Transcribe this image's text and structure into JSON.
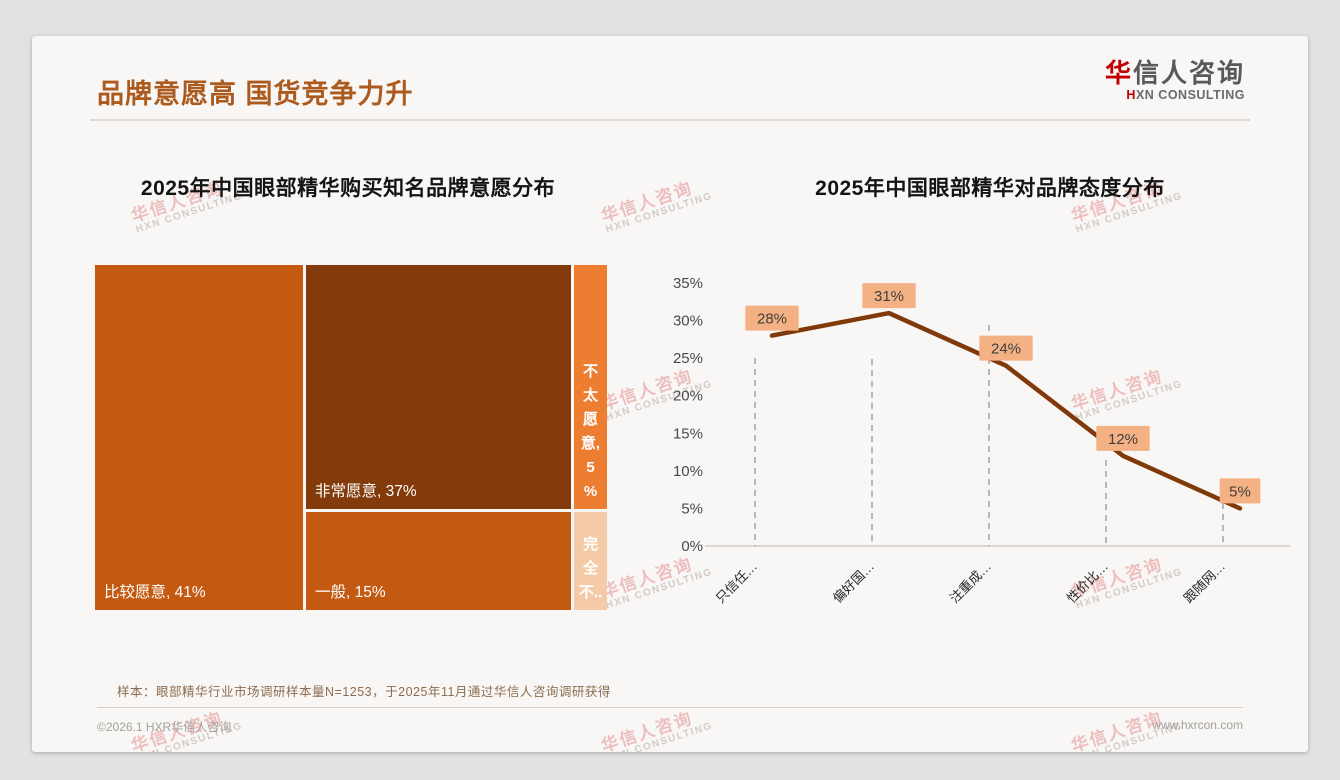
{
  "header": {
    "title": "品牌意愿高 国货竞争力升",
    "logo": {
      "cn_first": "华",
      "cn_rest": "信人咨询",
      "en_first": "H",
      "en_rest": "XN CONSULTING"
    }
  },
  "watermark": {
    "cn": "华信人咨询",
    "en": "HXN CONSULTING"
  },
  "chart_data": [
    {
      "type": "treemap",
      "title": "2025年中国眼部精华购买知名品牌意愿分布",
      "items": [
        {
          "label": "比较愿意",
          "value": 41,
          "display": "比较愿意, 41%",
          "color": "#C45A11",
          "orientation": "horizontal"
        },
        {
          "label": "非常愿意",
          "value": 37,
          "display": "非常愿意, 37%",
          "color": "#833B0B",
          "orientation": "horizontal"
        },
        {
          "label": "一般",
          "value": 15,
          "display": "一般, 15%",
          "color": "#C45A11",
          "orientation": "horizontal"
        },
        {
          "label": "不太愿意",
          "value": 5,
          "display": "不太愿意, 5%",
          "color": "#ED7D31",
          "orientation": "vertical"
        },
        {
          "label": "完全不愿意",
          "value": 2,
          "display": "完全不..",
          "color": "#F4CBA6",
          "orientation": "vertical"
        }
      ]
    },
    {
      "type": "line",
      "title": "2025年中国眼部精华对品牌态度分布",
      "categories": [
        "只信任…",
        "偏好国…",
        "注重成…",
        "性价比…",
        "跟随网…"
      ],
      "values": [
        28,
        31,
        24,
        12,
        5
      ],
      "point_labels": [
        "28%",
        "31%",
        "24%",
        "12%",
        "5%"
      ],
      "ylim": [
        0,
        35
      ],
      "yticks": [
        "0%",
        "5%",
        "10%",
        "15%",
        "20%",
        "25%",
        "30%",
        "35%"
      ],
      "legend": "none",
      "grid": "vertical-dashed-drop-lines",
      "line_color": "#80390B",
      "label_bg": "#F4B183",
      "label_text_color": "#3F3F3F"
    }
  ],
  "footer": {
    "sample_note": "样本：眼部精华行业市场调研样本量N=1253，于2025年11月通过华信人咨询调研获得",
    "copyright": "©2026.1 HXR华信人咨询",
    "website": "www.hxrcon.com"
  },
  "colors": {
    "accent_title": "#AC5A1E",
    "logo_red": "#C00000",
    "page_bg": "#E3E2E1",
    "card_bg": "#F8F7F5"
  }
}
